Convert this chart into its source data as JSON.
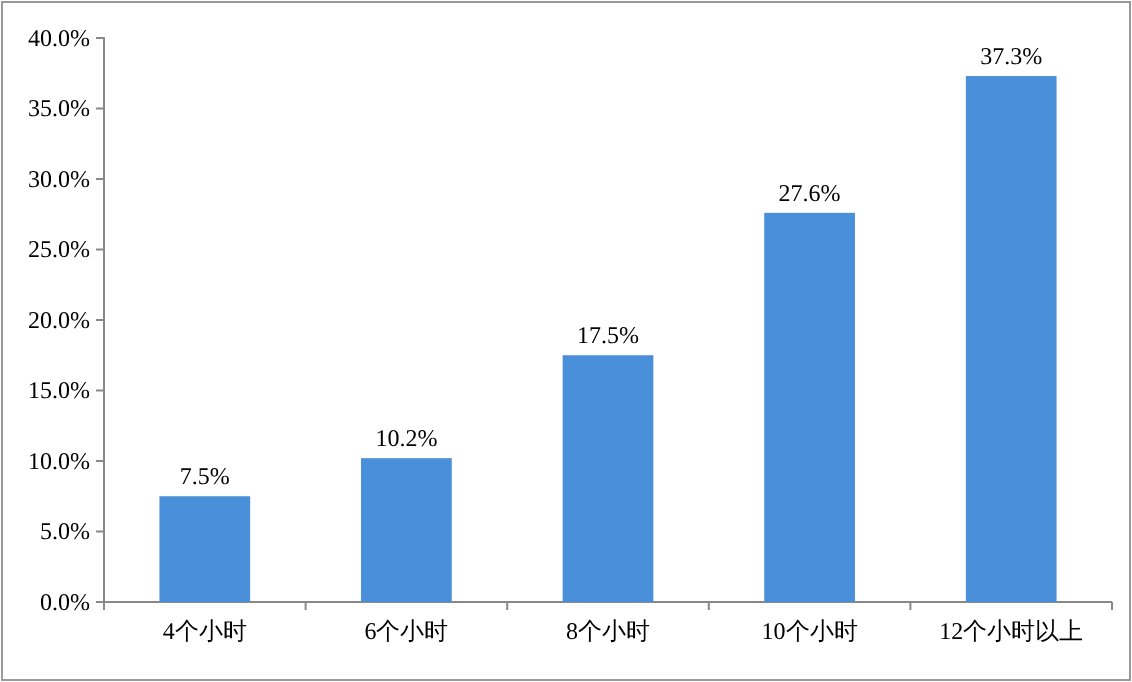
{
  "chart_data": {
    "type": "bar",
    "categories": [
      "4个小时",
      "6个小时",
      "8个小时",
      "10个小时",
      "12个小时以上"
    ],
    "values": [
      7.5,
      10.2,
      17.5,
      27.6,
      37.3
    ],
    "value_labels": [
      "7.5%",
      "10.2%",
      "17.5%",
      "27.6%",
      "37.3%"
    ],
    "color": "#4a8fd9",
    "ylim": [
      0,
      40
    ],
    "yticks": [
      {
        "value": 0,
        "label": "0.0%"
      },
      {
        "value": 5,
        "label": "5.0%"
      },
      {
        "value": 10,
        "label": "10.0%"
      },
      {
        "value": 15,
        "label": "15.0%"
      },
      {
        "value": 20,
        "label": "20.0%"
      },
      {
        "value": 25,
        "label": "25.0%"
      },
      {
        "value": 30,
        "label": "30.0%"
      },
      {
        "value": 35,
        "label": "35.0%"
      },
      {
        "value": 40,
        "label": "40.0%"
      }
    ],
    "grid": false
  }
}
